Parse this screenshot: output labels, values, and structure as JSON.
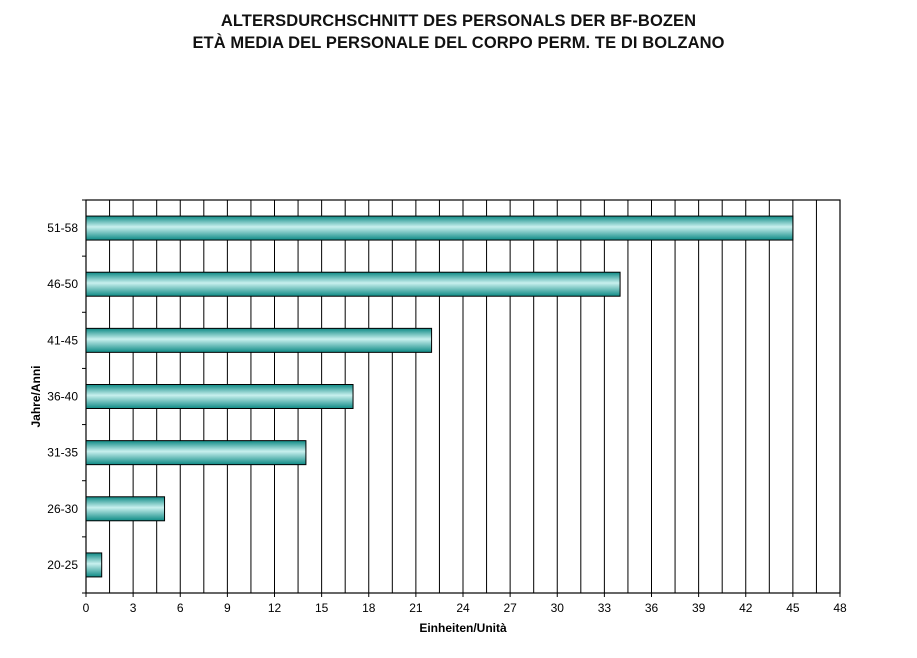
{
  "title_line1": "ALTERSDURCHSCHNITT DES PERSONALS DER BF-BOZEN",
  "title_line2": "ETÀ MEDIA DEL PERSONALE DEL CORPO PERM. TE DI BOLZANO",
  "colors": {
    "bar_dark": "#0e8a85",
    "bar_light": "#c8f0ee",
    "grid": "#000000"
  },
  "chart_data": {
    "type": "bar",
    "orientation": "horizontal",
    "title": "ALTERSDURCHSCHNITT DES PERSONALS DER BF-BOZEN / ETÀ MEDIA DEL PERSONALE DEL CORPO PERM. TE DI BOLZANO",
    "categories": [
      "20-25",
      "26-30",
      "31-35",
      "36-40",
      "41-45",
      "46-50",
      "51-58"
    ],
    "values": [
      1,
      5,
      14,
      17,
      22,
      34,
      45
    ],
    "xlabel": "Einheiten/Unità",
    "ylabel": "Jahre/Anni",
    "xlim": [
      0,
      48
    ],
    "xticks": [
      0,
      3,
      6,
      9,
      12,
      15,
      18,
      21,
      24,
      27,
      30,
      33,
      36,
      39,
      42,
      45,
      48
    ],
    "grid": true,
    "legend": "none"
  }
}
